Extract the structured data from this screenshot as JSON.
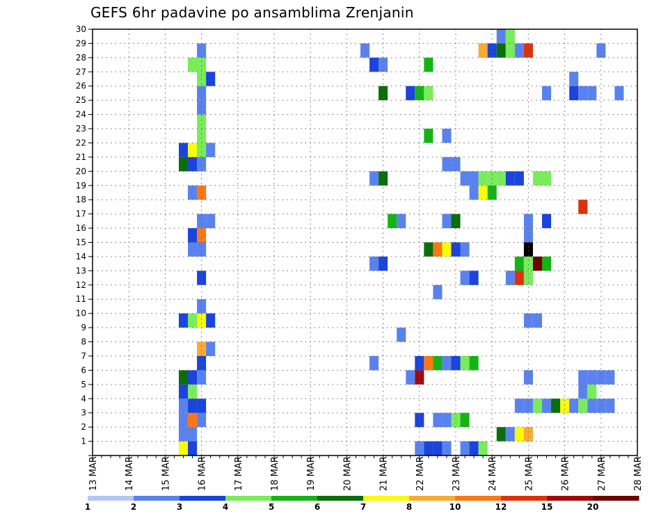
{
  "chart_data": {
    "type": "heatmap",
    "title": "GEFS 6hr padavine po ansamblima Zrenjanin",
    "x_tick_labels": [
      "13 MAR",
      "14 MAR",
      "15 MAR",
      "16 MAR",
      "17 MAR",
      "18 MAR",
      "19 MAR",
      "20 MAR",
      "21 MAR",
      "22 MAR",
      "23 MAR",
      "24 MAR",
      "25 MAR",
      "26 MAR",
      "27 MAR",
      "28 MAR"
    ],
    "y_tick_labels": [
      "1",
      "2",
      "3",
      "4",
      "5",
      "6",
      "7",
      "8",
      "9",
      "10",
      "11",
      "12",
      "13",
      "14",
      "15",
      "16",
      "17",
      "18",
      "19",
      "20",
      "21",
      "22",
      "23",
      "24",
      "25",
      "26",
      "27",
      "28",
      "29",
      "30"
    ],
    "xlim_days": [
      13,
      28
    ],
    "ylim": [
      0,
      30
    ],
    "grid": true,
    "legend_position": "bottom",
    "colorbar": {
      "labels": [
        "1",
        "2",
        "3",
        "4",
        "5",
        "6",
        "7",
        "8",
        "10",
        "12",
        "15",
        "20"
      ],
      "colors": [
        "#b4c6f6",
        "#5a82ee",
        "#1a44dc",
        "#78ec5a",
        "#14b414",
        "#0a6e0a",
        "#fafa0a",
        "#faaa32",
        "#fa7814",
        "#dc320a",
        "#a00a0a",
        "#6e0000"
      ]
    },
    "cells": [
      [
        15.5,
        0,
        6
      ],
      [
        15.75,
        0,
        2
      ],
      [
        15.5,
        1,
        1
      ],
      [
        15.75,
        1,
        1
      ],
      [
        15.5,
        2,
        1
      ],
      [
        15.75,
        2,
        8
      ],
      [
        16,
        2,
        1
      ],
      [
        15.5,
        3,
        1
      ],
      [
        15.75,
        3,
        2
      ],
      [
        16,
        3,
        2
      ],
      [
        15.5,
        4,
        2
      ],
      [
        15.75,
        4,
        3
      ],
      [
        15.5,
        5,
        5
      ],
      [
        15.75,
        5,
        2
      ],
      [
        16,
        5,
        1
      ],
      [
        16,
        6,
        2
      ],
      [
        16,
        7,
        7
      ],
      [
        16.25,
        7,
        1
      ],
      [
        15.5,
        9,
        2
      ],
      [
        15.75,
        9,
        3
      ],
      [
        16,
        9,
        6
      ],
      [
        16.25,
        9,
        2
      ],
      [
        16,
        10,
        1
      ],
      [
        16,
        12,
        2
      ],
      [
        15.75,
        14,
        1
      ],
      [
        16,
        14,
        1
      ],
      [
        15.75,
        15,
        2
      ],
      [
        16,
        15,
        8
      ],
      [
        16,
        16,
        1
      ],
      [
        16.25,
        16,
        1
      ],
      [
        15.75,
        18,
        1
      ],
      [
        16,
        18,
        8
      ],
      [
        15.5,
        20,
        5
      ],
      [
        15.75,
        20,
        2
      ],
      [
        16,
        20,
        1
      ],
      [
        15.5,
        21,
        2
      ],
      [
        15.75,
        21,
        6
      ],
      [
        16,
        21,
        3
      ],
      [
        16.25,
        21,
        1
      ],
      [
        16,
        22,
        3
      ],
      [
        16,
        23,
        3
      ],
      [
        16,
        24,
        1
      ],
      [
        16,
        25,
        1
      ],
      [
        16,
        26,
        3
      ],
      [
        16.25,
        26,
        2
      ],
      [
        15.75,
        27,
        3
      ],
      [
        16,
        27,
        3
      ],
      [
        16,
        28,
        1
      ],
      [
        20.75,
        6,
        1
      ],
      [
        21.5,
        8,
        1
      ],
      [
        20.75,
        13,
        1
      ],
      [
        21,
        13,
        2
      ],
      [
        21.25,
        16,
        4
      ],
      [
        21.5,
        16,
        1
      ],
      [
        20.75,
        19,
        1
      ],
      [
        21,
        19,
        5
      ],
      [
        21,
        25,
        5
      ],
      [
        20.75,
        27,
        2
      ],
      [
        21,
        27,
        1
      ],
      [
        20.5,
        28,
        1
      ],
      [
        22,
        0,
        1
      ],
      [
        22.25,
        0,
        2
      ],
      [
        22.5,
        0,
        2
      ],
      [
        22.75,
        0,
        1
      ],
      [
        23.25,
        0,
        1
      ],
      [
        23.5,
        0,
        2
      ],
      [
        23.75,
        0,
        3
      ],
      [
        22,
        2,
        2
      ],
      [
        22.5,
        2,
        1
      ],
      [
        22.75,
        2,
        1
      ],
      [
        23,
        2,
        3
      ],
      [
        23.25,
        2,
        4
      ],
      [
        21.75,
        5,
        1
      ],
      [
        22,
        5,
        10
      ],
      [
        22,
        6,
        2
      ],
      [
        22.25,
        6,
        8
      ],
      [
        22.5,
        6,
        4
      ],
      [
        22.75,
        6,
        1
      ],
      [
        23,
        6,
        2
      ],
      [
        23.25,
        6,
        3
      ],
      [
        23.5,
        6,
        4
      ],
      [
        22.5,
        11,
        1
      ],
      [
        22.25,
        14,
        5
      ],
      [
        22.5,
        14,
        8
      ],
      [
        22.75,
        14,
        6
      ],
      [
        23,
        14,
        2
      ],
      [
        23.25,
        14,
        1
      ],
      [
        22.75,
        16,
        1
      ],
      [
        23,
        16,
        5
      ],
      [
        22.75,
        20,
        1
      ],
      [
        23,
        20,
        1
      ],
      [
        22.25,
        22,
        4
      ],
      [
        22.75,
        22,
        1
      ],
      [
        21.75,
        25,
        2
      ],
      [
        22,
        25,
        4
      ],
      [
        22.25,
        25,
        3
      ],
      [
        22.25,
        27,
        4
      ],
      [
        23.25,
        12,
        1
      ],
      [
        23.5,
        12,
        2
      ],
      [
        23.5,
        18,
        1
      ],
      [
        23.75,
        18,
        6
      ],
      [
        24,
        18,
        4
      ],
      [
        23.25,
        19,
        1
      ],
      [
        23.5,
        19,
        1
      ],
      [
        23.75,
        19,
        3
      ],
      [
        24,
        19,
        3
      ],
      [
        24.25,
        19,
        3
      ],
      [
        24.5,
        19,
        2
      ],
      [
        24.75,
        19,
        2
      ],
      [
        24.25,
        1,
        5
      ],
      [
        24.5,
        1,
        1
      ],
      [
        24.75,
        1,
        6
      ],
      [
        25,
        1,
        7
      ],
      [
        24.75,
        3,
        1
      ],
      [
        25,
        3,
        1
      ],
      [
        25.25,
        3,
        3
      ],
      [
        25.5,
        3,
        1
      ],
      [
        25.75,
        3,
        5
      ],
      [
        26,
        3,
        6
      ],
      [
        26.25,
        3,
        1
      ],
      [
        26.5,
        3,
        3
      ],
      [
        26.75,
        3,
        1
      ],
      [
        27,
        3,
        1
      ],
      [
        27.25,
        3,
        1
      ],
      [
        26.5,
        4,
        1
      ],
      [
        26.75,
        4,
        3
      ],
      [
        25,
        5,
        1
      ],
      [
        26.5,
        5,
        1
      ],
      [
        26.75,
        5,
        1
      ],
      [
        27,
        5,
        1
      ],
      [
        27.25,
        5,
        1
      ],
      [
        25,
        9,
        1
      ],
      [
        25.25,
        9,
        1
      ],
      [
        24.5,
        12,
        1
      ],
      [
        24.75,
        12,
        9
      ],
      [
        25,
        12,
        3
      ],
      [
        24.75,
        13,
        4
      ],
      [
        25,
        13,
        3
      ],
      [
        25.25,
        13,
        11
      ],
      [
        25.5,
        13,
        4
      ],
      [
        25,
        14,
        12
      ],
      [
        25,
        15,
        1
      ],
      [
        25,
        16,
        1
      ],
      [
        25.5,
        16,
        2
      ],
      [
        25.25,
        19,
        3
      ],
      [
        25.5,
        19,
        3
      ],
      [
        26.5,
        17,
        9
      ],
      [
        25.5,
        25,
        1
      ],
      [
        26.25,
        25,
        2
      ],
      [
        26.5,
        25,
        1
      ],
      [
        26.75,
        25,
        1
      ],
      [
        27.5,
        25,
        1
      ],
      [
        26.25,
        26,
        1
      ],
      [
        23.75,
        28,
        7
      ],
      [
        24,
        28,
        2
      ],
      [
        24.25,
        28,
        5
      ],
      [
        24.5,
        28,
        3
      ],
      [
        24.75,
        28,
        1
      ],
      [
        25,
        28,
        9
      ],
      [
        27,
        28,
        1
      ],
      [
        24.25,
        29,
        1
      ],
      [
        24.5,
        29,
        3
      ]
    ]
  }
}
